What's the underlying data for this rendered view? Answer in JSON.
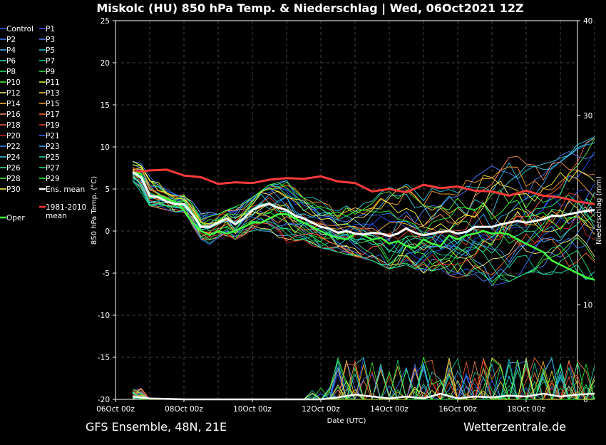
{
  "chart_data": {
    "type": "line",
    "title": "Miskolc  (HU)  850 hPa Temp. & Niederschlag | Wed, 06Oct2021 12Z",
    "xlabel": "Date (UTC)",
    "ylabel": "850 hPa Temp. (°C)",
    "y2label": "Niederschlag (mm)",
    "ylim": [
      -20,
      25
    ],
    "y2lim": [
      0,
      40
    ],
    "yticks": [
      "-20",
      "-15",
      "-10",
      "-5",
      "0",
      "5",
      "10",
      "15",
      "20",
      "25"
    ],
    "y2ticks": [
      "0",
      "10",
      "20",
      "30",
      "40"
    ],
    "x_range_days": [
      0,
      14
    ],
    "x_ticks": [
      {
        "day": 0,
        "label": "06Oct 00z"
      },
      {
        "day": 2,
        "label": "08Oct 00z"
      },
      {
        "day": 4,
        "label": "10Oct 00z"
      },
      {
        "day": 6,
        "label": "12Oct 00z"
      },
      {
        "day": 8,
        "label": "14Oct 00z"
      },
      {
        "day": 10,
        "label": "16Oct 00z"
      },
      {
        "day": 12,
        "label": "18Oct 00z"
      }
    ],
    "grid": true,
    "legend_placement": "left",
    "legend": [
      {
        "label": "Control",
        "color": "#1f5fff"
      },
      {
        "label": "P1",
        "color": "#3050ff"
      },
      {
        "label": "P2",
        "color": "#4a7bff"
      },
      {
        "label": "P3",
        "color": "#5a8cff"
      },
      {
        "label": "P4",
        "color": "#46b8ff"
      },
      {
        "label": "P5",
        "color": "#23c8e0"
      },
      {
        "label": "P6",
        "color": "#35e6c8"
      },
      {
        "label": "P7",
        "color": "#10e0a0"
      },
      {
        "label": "P8",
        "color": "#20ee70"
      },
      {
        "label": "P9",
        "color": "#30f050"
      },
      {
        "label": "P10",
        "color": "#48ff30"
      },
      {
        "label": "P11",
        "color": "#e8ff30"
      },
      {
        "label": "P12",
        "color": "#f8e878"
      },
      {
        "label": "P13",
        "color": "#ffd840"
      },
      {
        "label": "P14",
        "color": "#ffc030"
      },
      {
        "label": "P15",
        "color": "#ffa020"
      },
      {
        "label": "P16",
        "color": "#ff9060"
      },
      {
        "label": "P17",
        "color": "#ff7030"
      },
      {
        "label": "P18",
        "color": "#ff6040"
      },
      {
        "label": "P19",
        "color": "#e84a20"
      },
      {
        "label": "P20",
        "color": "#d82020"
      },
      {
        "label": "P21",
        "color": "#3868ff"
      },
      {
        "label": "P22",
        "color": "#3a8aff"
      },
      {
        "label": "P23",
        "color": "#30b0ff"
      },
      {
        "label": "P24",
        "color": "#40d0e8"
      },
      {
        "label": "P25",
        "color": "#28e0b8"
      },
      {
        "label": "P26",
        "color": "#30e890"
      },
      {
        "label": "P27",
        "color": "#20e870"
      },
      {
        "label": "P28",
        "color": "#50f040"
      },
      {
        "label": "P29",
        "color": "#30ff30"
      },
      {
        "label": "P30",
        "color": "#ffff40"
      },
      {
        "label": "Ens. mean",
        "color": "#ffffff"
      },
      {
        "label": "Oper",
        "color": "#40ff40"
      },
      {
        "label": "1981-2010 mean",
        "color": "#ff3a3a"
      }
    ],
    "ensemble_mean": {
      "name": "Ens. mean",
      "x": [
        0.5,
        0.75,
        1,
        1.25,
        1.5,
        1.75,
        2,
        2.25,
        2.5,
        2.75,
        3,
        3.25,
        3.5,
        3.75,
        4,
        4.25,
        4.5,
        4.75,
        5,
        5.25,
        5.5,
        5.75,
        6,
        6.25,
        6.5,
        6.75,
        7,
        7.25,
        7.5,
        7.75,
        8,
        8.25,
        8.5,
        8.75,
        9,
        9.25,
        9.5,
        9.75,
        10,
        10.25,
        10.5,
        10.75,
        11,
        11.25,
        11.5,
        11.75,
        12,
        12.25,
        12.5,
        12.75,
        13,
        13.25,
        13.5,
        13.75,
        14
      ],
      "values": [
        7.0,
        6.4,
        4.2,
        4.0,
        3.5,
        3.2,
        3.2,
        2.0,
        0.5,
        0.5,
        1.0,
        1.5,
        0.8,
        1.5,
        2.5,
        3.0,
        3.2,
        2.8,
        2.5,
        1.8,
        1.5,
        1.0,
        0.5,
        0.3,
        -0.2,
        0.0,
        -0.3,
        -0.4,
        -0.2,
        -0.3,
        -0.6,
        -0.3,
        0.3,
        -0.2,
        -0.5,
        -0.3,
        -0.1,
        0.0,
        -0.3,
        -0.1,
        0.5,
        0.5,
        0.5,
        0.8,
        1.0,
        1.2,
        1.0,
        1.2,
        1.4,
        1.8,
        1.8,
        2.0,
        2.2,
        2.4,
        2.5
      ]
    },
    "oper": {
      "name": "Oper",
      "x": [
        0.5,
        0.75,
        1,
        1.25,
        1.5,
        1.75,
        2,
        2.25,
        2.5,
        2.75,
        3,
        3.25,
        3.5,
        3.75,
        4,
        4.25,
        4.5,
        4.75,
        5,
        5.25,
        5.5,
        5.75,
        6,
        6.25,
        6.5,
        6.75,
        7,
        7.25,
        7.5,
        7.75,
        8,
        8.25,
        8.5,
        8.75,
        9,
        9.25,
        9.5,
        9.75,
        10,
        10.25,
        10.5,
        10.75,
        11,
        11.25,
        11.5,
        11.75,
        12,
        12.25,
        12.5,
        12.75,
        13,
        13.25,
        13.5,
        13.75,
        14
      ],
      "values": [
        7.0,
        6.8,
        4.0,
        4.2,
        3.8,
        3.5,
        2.5,
        1.0,
        0.0,
        -0.5,
        0.0,
        -0.3,
        0.0,
        0.5,
        1.0,
        1.0,
        1.5,
        2.0,
        2.0,
        1.5,
        1.0,
        0.5,
        0.0,
        -0.5,
        -0.8,
        -1.0,
        -0.3,
        -0.5,
        -1.0,
        -0.8,
        -1.5,
        -1.2,
        -1.8,
        -2.0,
        -1.0,
        -1.5,
        -1.8,
        -0.5,
        -1.0,
        -0.5,
        -0.3,
        0.0,
        -0.3,
        -0.2,
        -0.4,
        -1.0,
        -1.5,
        -2.0,
        -2.5,
        -3.5,
        -4.0,
        -4.5,
        -5.0,
        -5.5,
        -5.8
      ]
    },
    "climate_mean": {
      "name": "1981-2010 mean",
      "x": [
        0.5,
        1,
        1.5,
        2,
        2.5,
        3,
        3.5,
        4,
        4.5,
        5,
        5.5,
        6,
        6.5,
        7,
        7.5,
        8,
        8.5,
        9,
        9.5,
        10,
        10.5,
        11,
        11.5,
        12,
        12.5,
        13,
        13.5,
        14
      ],
      "values": [
        7.0,
        7.2,
        7.3,
        6.6,
        6.4,
        5.6,
        5.8,
        5.7,
        6.1,
        6.3,
        6.2,
        6.5,
        5.9,
        5.7,
        4.7,
        5.0,
        4.6,
        5.5,
        5.1,
        5.3,
        4.8,
        4.7,
        4.2,
        4.8,
        4.2,
        4.0,
        3.5,
        3.2
      ]
    },
    "member_temperature_spread": {
      "x": [
        0.5,
        1,
        1.5,
        2,
        2.5,
        3,
        3.5,
        4,
        4.5,
        5,
        5.5,
        6,
        6.5,
        7,
        7.5,
        8,
        8.5,
        9,
        9.5,
        10,
        10.5,
        11,
        11.5,
        12,
        12.5,
        13,
        13.5,
        14
      ],
      "min": [
        6.0,
        3.0,
        2.5,
        2.0,
        -1.0,
        -2.5,
        -1.0,
        -1.0,
        -2.5,
        -2.0,
        -1.5,
        -2.0,
        -2.5,
        -3.0,
        -3.5,
        -4.5,
        -4.0,
        -5.0,
        -4.5,
        -6.0,
        -7.0,
        -6.5,
        -6.0,
        -5.0,
        -5.5,
        -5.0,
        -5.5,
        -6.0
      ],
      "max": [
        8.5,
        7.5,
        5.0,
        4.5,
        2.5,
        2.0,
        3.0,
        4.0,
        5.5,
        6.0,
        4.5,
        4.5,
        3.0,
        4.0,
        5.0,
        8.0,
        7.5,
        6.0,
        7.0,
        6.0,
        7.0,
        10.0,
        11.5,
        10.0,
        9.0,
        10.0,
        12.0,
        12.5
      ]
    },
    "precipitation_mm": {
      "ens_mean_x": [
        0.5,
        1,
        2,
        3,
        4,
        5,
        6,
        6.5,
        7,
        7.5,
        8,
        8.5,
        9,
        9.5,
        10,
        10.5,
        11,
        11.5,
        12,
        12.5,
        13,
        13.5,
        14
      ],
      "ens_mean_values": [
        0.3,
        0.1,
        0.0,
        0.0,
        0.0,
        0.0,
        0.0,
        0.2,
        0.5,
        0.3,
        0.1,
        0.3,
        0.1,
        0.6,
        0.1,
        0.3,
        0.2,
        0.4,
        0.3,
        0.6,
        0.3,
        0.5,
        0.6
      ]
    }
  },
  "footer": {
    "left": "GFS Ensemble, 48N, 21E",
    "right": "Wetterzentrale.de"
  }
}
